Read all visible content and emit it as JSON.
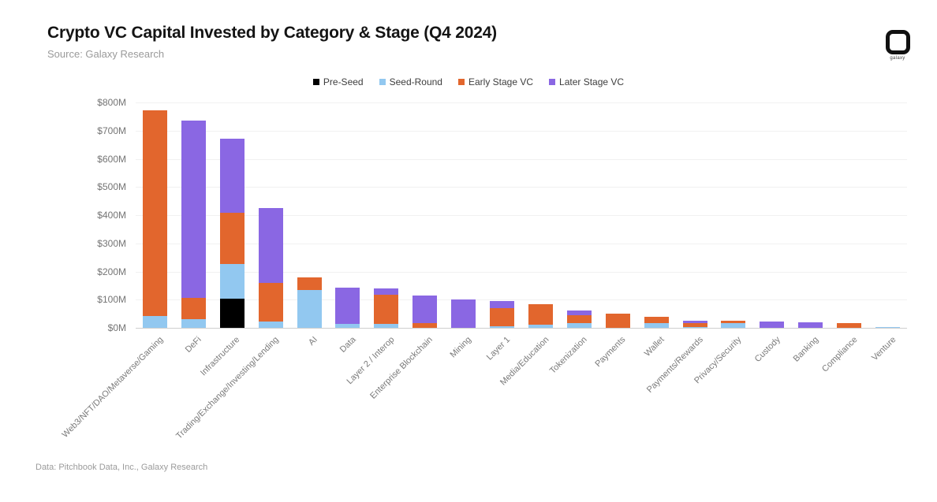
{
  "header": {
    "title": "Crypto VC Capital Invested by Category & Stage (Q4 2024)",
    "source": "Source: Galaxy Research",
    "logo_text": "galaxy"
  },
  "legend": [
    {
      "label": "Pre-Seed",
      "color": "#000000"
    },
    {
      "label": "Seed-Round",
      "color": "#92C8F0"
    },
    {
      "label": "Early Stage VC",
      "color": "#E2662D"
    },
    {
      "label": "Later Stage VC",
      "color": "#8A67E3"
    }
  ],
  "chart_data": {
    "type": "bar",
    "stacked": true,
    "title": "Crypto VC Capital Invested by Category & Stage (Q4 2024)",
    "unit": "$M (USD millions)",
    "ylim": [
      0,
      800
    ],
    "ytick_step": 100,
    "ytick_labels": [
      "$0M",
      "$100M",
      "$200M",
      "$300M",
      "$400M",
      "$500M",
      "$600M",
      "$700M",
      "$800M"
    ],
    "grid": true,
    "legend_position": "top-center",
    "categories": [
      "Web3/NFT/DAO/Metaverse/Gaming",
      "DeFi",
      "Infrastructure",
      "Trading/Exchange/Investing/Lending",
      "AI",
      "Data",
      "Layer 2 / Interop",
      "Enterprise Blockchain",
      "Mining",
      "Layer 1",
      "Media/Education",
      "Tokenization",
      "Payments",
      "Wallet",
      "Payments/Rewards",
      "Privacy/Security",
      "Custody",
      "Banking",
      "Compliance",
      "Venture"
    ],
    "series": [
      {
        "name": "Pre-Seed",
        "color": "#000000",
        "values": [
          0,
          0,
          103,
          0,
          0,
          0,
          0,
          0,
          0,
          0,
          0,
          0,
          0,
          0,
          0,
          0,
          0,
          0,
          0,
          0
        ]
      },
      {
        "name": "Seed-Round",
        "color": "#92C8F0",
        "values": [
          42,
          31,
          124,
          22,
          133,
          13,
          15,
          0,
          0,
          6,
          11,
          18,
          0,
          18,
          3,
          17,
          0,
          0,
          0,
          3
        ]
      },
      {
        "name": "Early Stage VC",
        "color": "#E2662D",
        "values": [
          730,
          76,
          182,
          137,
          46,
          0,
          103,
          17,
          0,
          63,
          72,
          28,
          49,
          20,
          14,
          7,
          0,
          0,
          18,
          0
        ]
      },
      {
        "name": "Later Stage VC",
        "color": "#8A67E3",
        "values": [
          0,
          629,
          263,
          266,
          0,
          131,
          21,
          99,
          101,
          25,
          0,
          17,
          0,
          0,
          7,
          0,
          23,
          20,
          0,
          0
        ]
      }
    ]
  },
  "footer": {
    "text": "Data: Pitchbook Data, Inc., Galaxy Research"
  }
}
